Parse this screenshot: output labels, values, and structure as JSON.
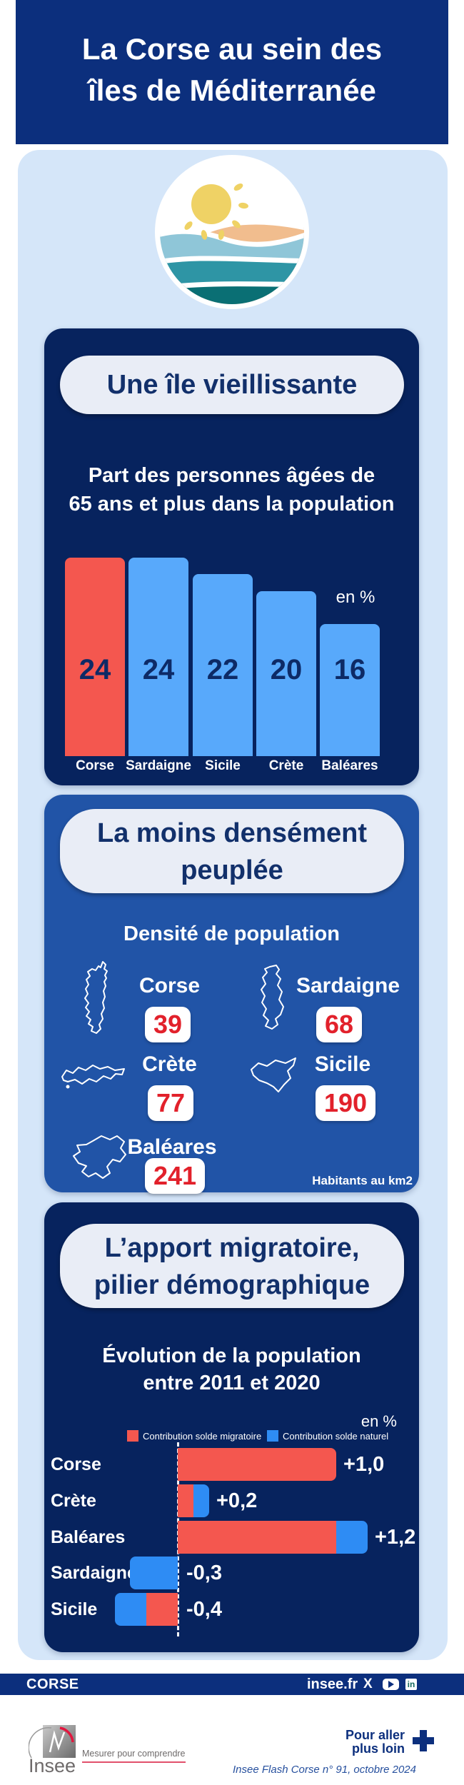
{
  "header": {
    "title_line1": "La Corse au sein des",
    "title_line2": "îles de Méditerranée"
  },
  "sections": {
    "aging": {
      "pill": "Une île vieillissante",
      "subtitle_line1": "Part des personnes âgées de",
      "subtitle_line2": "65 ans et plus dans la population",
      "unit": "en %"
    },
    "density": {
      "pill_line1": "La moins densément",
      "pill_line2": "peuplée",
      "subtitle": "Densité de population",
      "unit": "Habitants au km2"
    },
    "migration": {
      "pill_line1": "L’apport migratoire,",
      "pill_line2": "pilier démographique",
      "subtitle_line1": "Évolution de la population",
      "subtitle_line2": "entre 2011 et 2020",
      "unit": "en %"
    }
  },
  "chart_data": [
    {
      "type": "bar",
      "title": "Part des personnes âgées de 65 ans et plus dans la population",
      "unit": "en %",
      "categories": [
        "Corse",
        "Sardaigne",
        "Sicile",
        "Crète",
        "Baléares"
      ],
      "values": [
        24,
        24,
        22,
        20,
        16
      ],
      "bar_colors": [
        "#f4574f",
        "#58a9fb",
        "#58a9fb",
        "#58a9fb",
        "#58a9fb"
      ],
      "ylim": [
        0,
        25
      ],
      "grid": false
    },
    {
      "type": "table",
      "title": "Densité de population",
      "unit": "Habitants au km2",
      "categories": [
        "Corse",
        "Sardaigne",
        "Crète",
        "Sicile",
        "Baléares"
      ],
      "values": [
        39,
        68,
        77,
        190,
        241
      ]
    },
    {
      "type": "bar",
      "orientation": "horizontal",
      "title": "Évolution de la population entre 2011 et 2020",
      "unit": "en %",
      "categories": [
        "Corse",
        "Crète",
        "Baléares",
        "Sardaigne",
        "Sicile"
      ],
      "series": [
        {
          "name": "Contribution solde migratoire",
          "color": "#f4574f",
          "values": [
            1.0,
            0.1,
            1.0,
            0,
            -0.2
          ]
        },
        {
          "name": "Contribution solde naturel",
          "color": "#2e8cf4",
          "values": [
            0,
            0.1,
            0.2,
            -0.3,
            -0.2
          ]
        }
      ],
      "totals": [
        "+1,0",
        "+0,2",
        "+1,2",
        "-0,3",
        "-0,4"
      ],
      "baseline": 0,
      "legend_position": "top"
    }
  ],
  "footer": {
    "region": "CORSE",
    "site": "insee.fr",
    "icons": [
      "x-icon",
      "youtube-icon",
      "linkedin-icon"
    ],
    "linkedin_glyph": "in"
  },
  "bottom": {
    "insee": "Insee",
    "tagline": "Mesurer pour comprendre",
    "more_line1": "Pour aller",
    "more_line2": "plus loin",
    "credit": "Insee Flash Corse n° 91, octobre 2024"
  },
  "colors": {
    "header_navy": "#0c2f7d",
    "card_dark": "#07235e",
    "card_blue": "#2154a7",
    "light_blue": "#d5e6f9",
    "pill_bg": "#e9edf6",
    "accent_red": "#f4574f",
    "badge_red": "#e2212b",
    "bar_blue": "#58a9fb",
    "hbar_blue": "#2e8cf4"
  }
}
